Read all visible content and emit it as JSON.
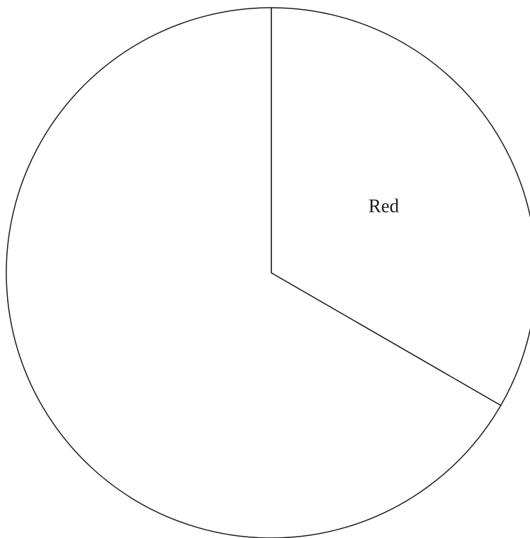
{
  "chart_data": {
    "type": "pie",
    "slices": [
      {
        "label": "Red",
        "value": 120
      },
      {
        "label": "",
        "value": 240
      }
    ],
    "start_angle_deg": 0,
    "direction": "clockwise",
    "stroke_color": "#1a1a1a",
    "fill_color": "#ffffff"
  }
}
